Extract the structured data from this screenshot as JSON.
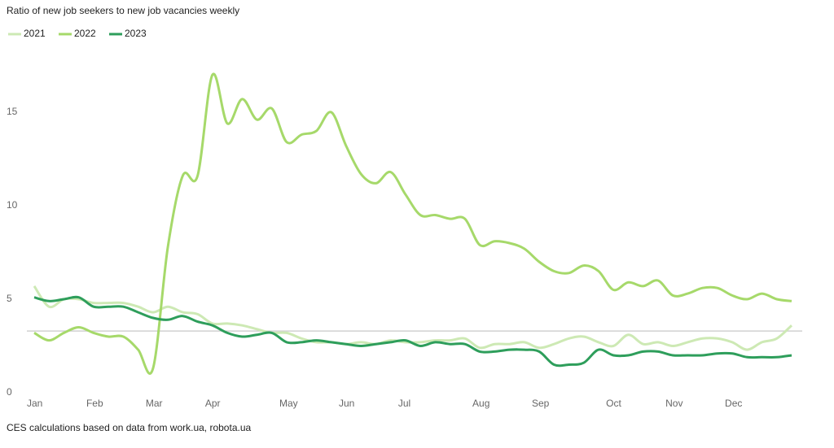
{
  "chart_data": {
    "type": "line",
    "title": "Ratio of new job seekers to new job vacancies weekly",
    "source": "CES calculations based on data from work.ua, robota.ua",
    "categories": [
      "Jan",
      null,
      null,
      null,
      "Feb",
      null,
      null,
      null,
      "Mar",
      null,
      null,
      null,
      "Apr",
      null,
      null,
      null,
      null,
      "May",
      null,
      null,
      null,
      "Jun",
      null,
      null,
      null,
      "Jul",
      null,
      null,
      null,
      null,
      "Aug",
      null,
      null,
      null,
      "Sep",
      null,
      null,
      null,
      null,
      "Oct",
      null,
      null,
      null,
      "Nov",
      null,
      null,
      null,
      "Dec",
      null,
      null,
      null,
      null
    ],
    "series": [
      {
        "name": "2021",
        "color": "#cde9b4",
        "values": [
          5.7,
          4.6,
          5.0,
          5.0,
          4.8,
          4.8,
          4.8,
          4.6,
          4.3,
          4.6,
          4.3,
          4.2,
          3.7,
          3.7,
          3.6,
          3.4,
          3.2,
          3.2,
          2.9,
          2.7,
          2.7,
          2.6,
          2.7,
          2.6,
          2.8,
          2.7,
          2.7,
          2.8,
          2.8,
          2.9,
          2.4,
          2.6,
          2.6,
          2.7,
          2.4,
          2.6,
          2.9,
          3.0,
          2.7,
          2.5,
          3.1,
          2.6,
          2.7,
          2.5,
          2.7,
          2.9,
          2.9,
          2.7,
          2.3,
          2.7,
          2.9,
          3.6
        ]
      },
      {
        "name": "2022",
        "color": "#a6d96a",
        "values": [
          3.2,
          2.8,
          3.2,
          3.5,
          3.2,
          3.0,
          3.0,
          2.3,
          1.3,
          7.8,
          11.6,
          11.6,
          17.0,
          14.4,
          15.7,
          14.6,
          15.2,
          13.4,
          13.8,
          14.0,
          15.0,
          13.2,
          11.7,
          11.2,
          11.8,
          10.6,
          9.5,
          9.5,
          9.3,
          9.3,
          7.9,
          8.1,
          8.0,
          7.7,
          7.0,
          6.5,
          6.4,
          6.8,
          6.5,
          5.5,
          5.9,
          5.7,
          6.0,
          5.2,
          5.3,
          5.6,
          5.6,
          5.2,
          5.0,
          5.3,
          5.0,
          4.9
        ]
      },
      {
        "name": "2023",
        "color": "#2e9e5b",
        "values": [
          5.1,
          4.9,
          5.0,
          5.1,
          4.6,
          4.6,
          4.6,
          4.3,
          4.0,
          3.9,
          4.1,
          3.8,
          3.6,
          3.2,
          3.0,
          3.1,
          3.2,
          2.7,
          2.7,
          2.8,
          2.7,
          2.6,
          2.5,
          2.6,
          2.7,
          2.8,
          2.5,
          2.7,
          2.6,
          2.6,
          2.2,
          2.2,
          2.3,
          2.3,
          2.2,
          1.5,
          1.5,
          1.6,
          2.3,
          2.0,
          2.0,
          2.2,
          2.2,
          2.0,
          2.0,
          2.0,
          2.1,
          2.1,
          1.9,
          1.9,
          1.9,
          2.0
        ]
      }
    ],
    "reference_line": 3.3,
    "ylim": [
      0,
      17.5
    ],
    "yticks": [
      0,
      5,
      10,
      15
    ],
    "grid": false
  }
}
